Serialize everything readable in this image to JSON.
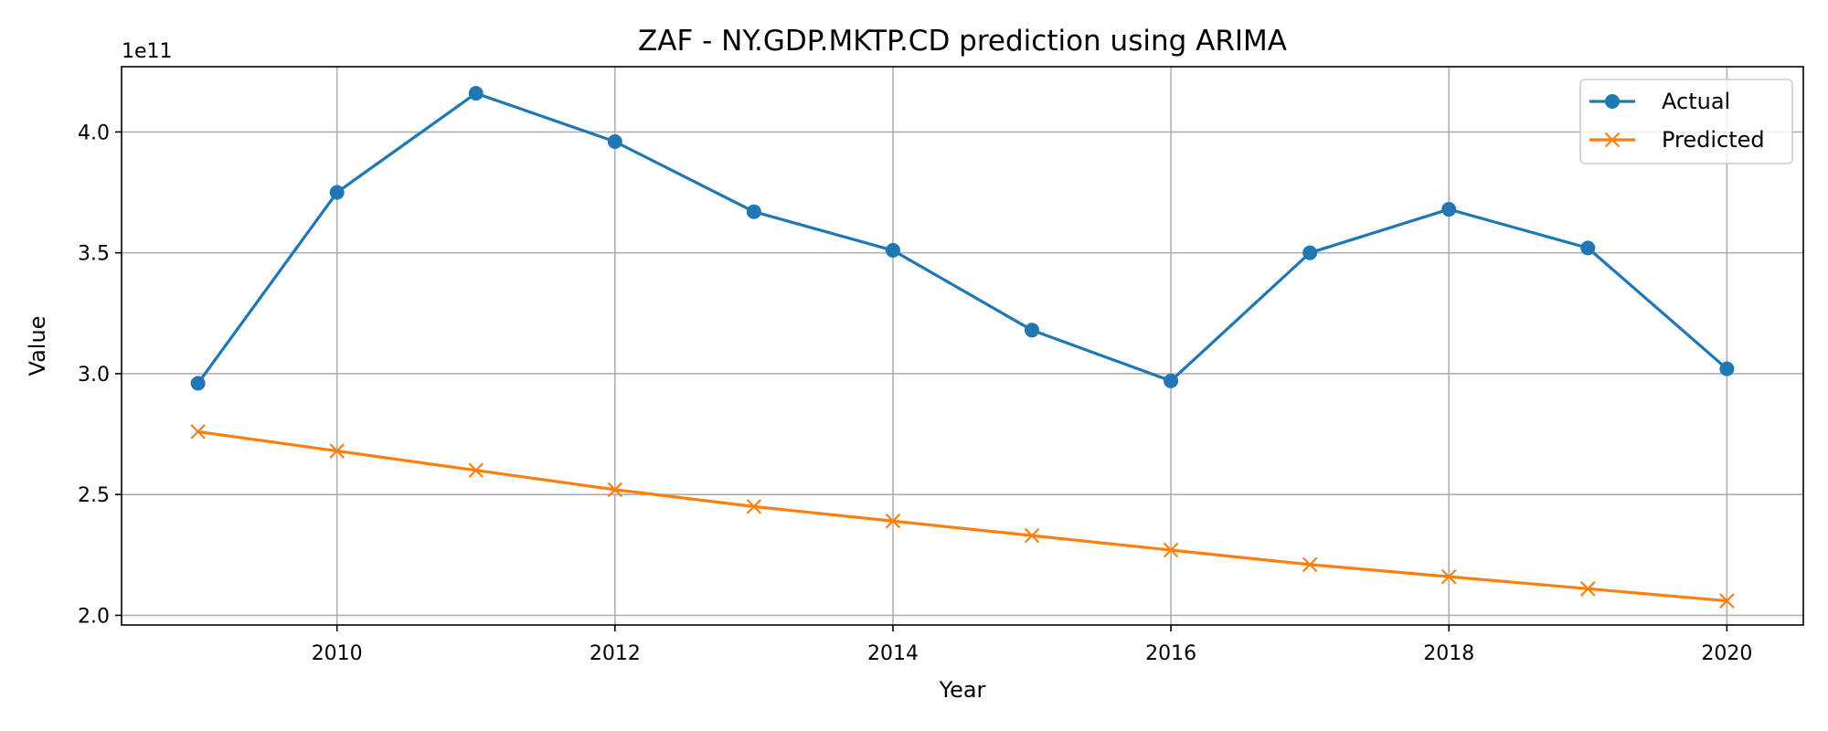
{
  "chart_data": {
    "type": "line",
    "title": "ZAF - NY.GDP.MKTP.CD prediction using ARIMA",
    "xlabel": "Year",
    "ylabel": "Value",
    "y_offset_text": "1e11",
    "x": [
      2009,
      2010,
      2011,
      2012,
      2013,
      2014,
      2015,
      2016,
      2017,
      2018,
      2019,
      2020
    ],
    "xlim": [
      2008.45,
      2020.55
    ],
    "ylim": [
      1.96,
      4.27
    ],
    "x_ticks": [
      2010,
      2012,
      2014,
      2016,
      2018,
      2020
    ],
    "y_ticks": [
      2.0,
      2.5,
      3.0,
      3.5,
      4.0
    ],
    "y_tick_labels": [
      "2.0",
      "2.5",
      "3.0",
      "3.5",
      "4.0"
    ],
    "grid": true,
    "legend_position": "top-right",
    "series": [
      {
        "name": "Actual",
        "color": "#1f77b4",
        "marker": "circle",
        "values": [
          2.96,
          3.75,
          4.16,
          3.96,
          3.67,
          3.51,
          3.18,
          2.97,
          3.5,
          3.68,
          3.52,
          3.02
        ]
      },
      {
        "name": "Predicted",
        "color": "#ff7f0e",
        "marker": "x",
        "values": [
          2.76,
          2.68,
          2.6,
          2.52,
          2.45,
          2.39,
          2.33,
          2.27,
          2.21,
          2.16,
          2.11,
          2.06
        ]
      }
    ]
  }
}
